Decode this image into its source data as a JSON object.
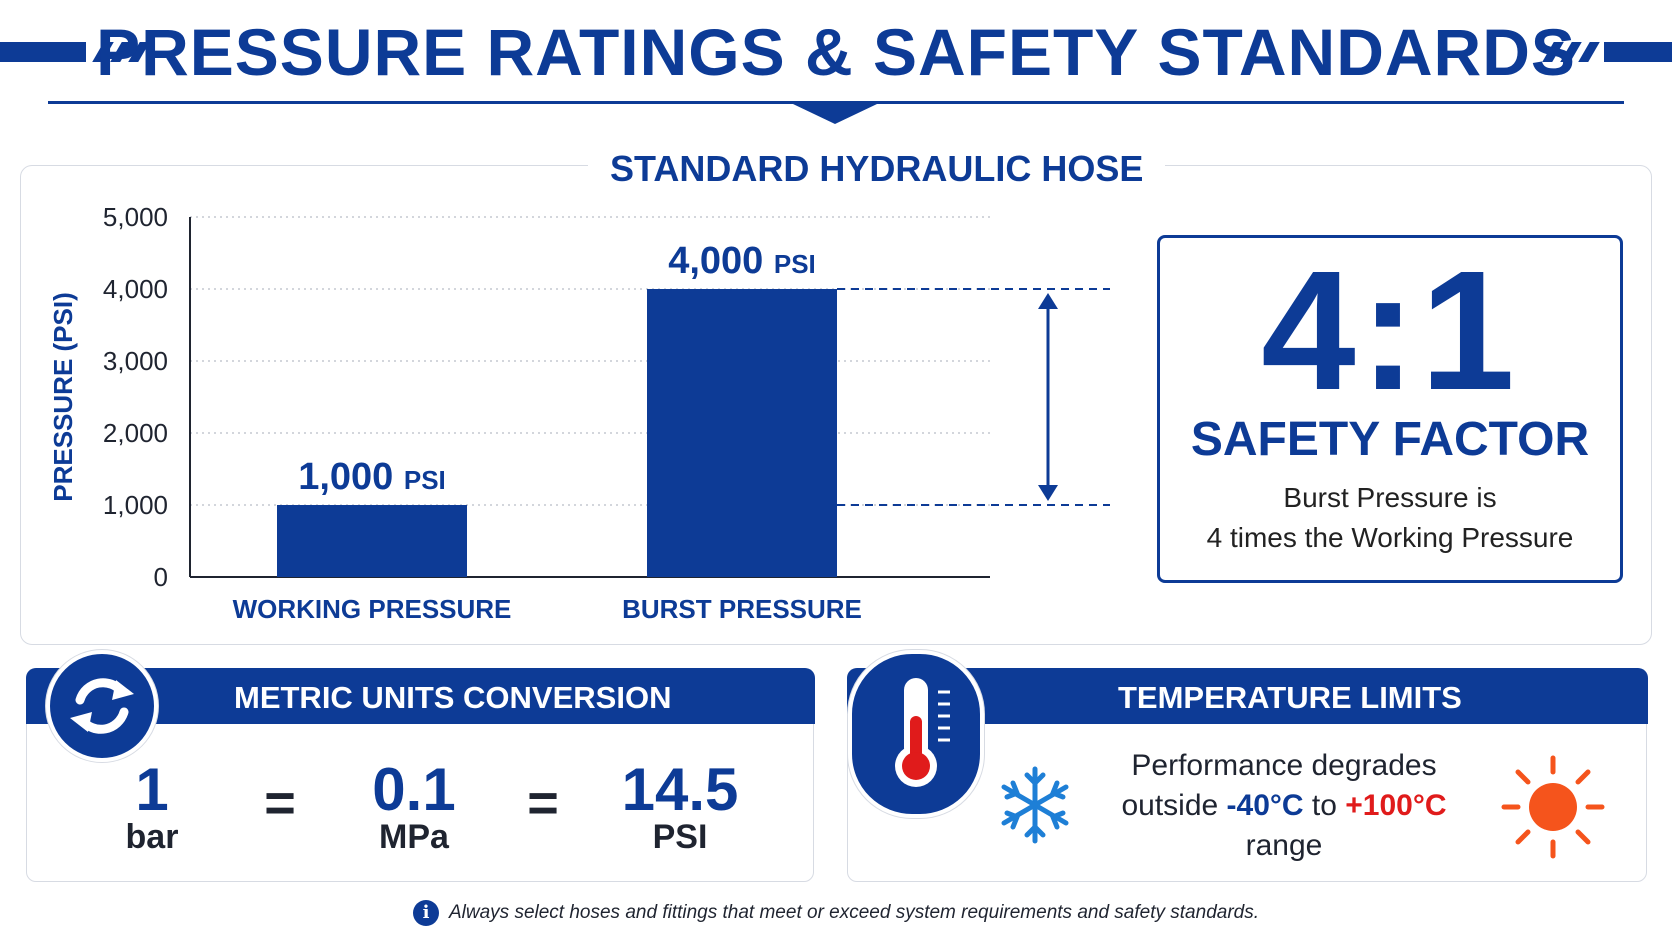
{
  "header": {
    "title": "PRESSURE RATINGS & SAFETY STANDARDS"
  },
  "colors": {
    "brand_blue": "#0d3b96",
    "cold_blue": "#1e7fd6",
    "hot_red": "#e01b1b",
    "sun_orange": "#f5541c"
  },
  "chart_data": {
    "type": "bar",
    "title": "STANDARD HYDRAULIC HOSE",
    "ylabel": "PRESSURE (PSI)",
    "xlabel": "",
    "categories": [
      "WORKING PRESSURE",
      "BURST PRESSURE"
    ],
    "values": [
      1000,
      4000
    ],
    "data_labels": [
      "1,000",
      "4,000"
    ],
    "unit_label": "PSI",
    "ylim": [
      0,
      5000
    ],
    "yticks": [
      0,
      1000,
      2000,
      3000,
      4000,
      5000
    ],
    "ytick_labels": [
      "0",
      "1,000",
      "2,000",
      "3,000",
      "4,000",
      "5,000"
    ],
    "grid": true
  },
  "safety_factor": {
    "ratio": "4:1",
    "label": "SAFETY FACTOR",
    "line1": "Burst Pressure is",
    "line2": "4 times the Working Pressure"
  },
  "conversion": {
    "title": "METRIC UNITS CONVERSION",
    "icon": "refresh-icon",
    "equals": "=",
    "items": [
      {
        "value": "1",
        "unit": "bar"
      },
      {
        "value": "0.1",
        "unit": "MPa"
      },
      {
        "value": "14.5",
        "unit": "PSI"
      }
    ]
  },
  "temperature": {
    "title": "TEMPERATURE LIMITS",
    "icons": [
      "thermometer-icon",
      "snowflake-icon",
      "sun-icon"
    ],
    "line1": "Performance degrades",
    "line2_prefix": "outside ",
    "min": "-40°C",
    "connector": " to ",
    "max": "+100°C",
    "line3": "range"
  },
  "footer": {
    "note": "Always select hoses and fittings that meet or exceed system requirements and safety standards.",
    "icon_glyph": "i"
  }
}
